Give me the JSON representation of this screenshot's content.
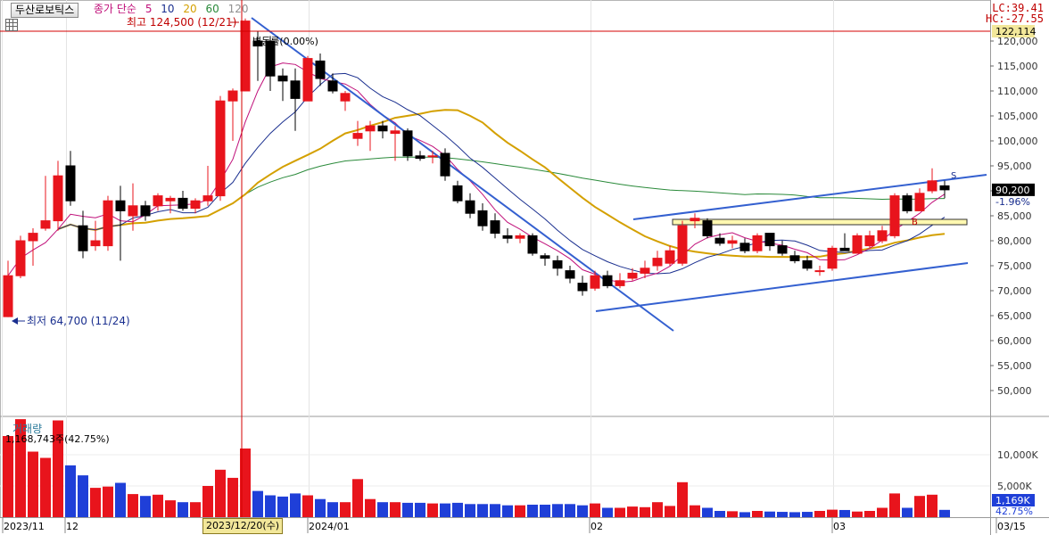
{
  "header": {
    "stock_name": "두산로보틱스",
    "ma_label": "종가 단순",
    "ma_periods": [
      {
        "label": "5",
        "color": "#c0107a"
      },
      {
        "label": "10",
        "color": "#1a2f8f"
      },
      {
        "label": "20",
        "color": "#d4a000"
      },
      {
        "label": "60",
        "color": "#2a8a3a"
      },
      {
        "label": "120",
        "color": "#909090"
      }
    ],
    "lc": "LC:39.41",
    "hc": "HC:-27.55"
  },
  "price_panel": {
    "high_annotation": "최고 124,500 (12/21)",
    "low_annotation": "최저 64,700 (11/24)",
    "change_annotation": "변동률(0.00%)",
    "current_price_tag": "90,200",
    "change_pct_tag": "-1.96%",
    "crosshair_tag": "122,114",
    "marker_s": "S",
    "marker_b": "B"
  },
  "volume_panel": {
    "title": "거래량",
    "info": "1,168,743주(42.75%)",
    "current_volume_tag": "1,169K",
    "current_pct_tag": "42.75%"
  },
  "x_axis": {
    "labels": [
      "2023/11",
      "12",
      "2024/01",
      "02",
      "03",
      "03/15"
    ],
    "crosshair_date": "2023/12/20(수)"
  },
  "colors": {
    "up": "#e8141c",
    "down": "#000000",
    "vol_up": "#e8141c",
    "vol_down": "#1f3fd8",
    "trendline": "#3460d0",
    "crosshair": "#d40000"
  },
  "chart_data": {
    "type": "candlestick",
    "price_ylim": [
      45000,
      125000
    ],
    "price_ticks": [
      50000,
      55000,
      60000,
      65000,
      70000,
      75000,
      80000,
      85000,
      90000,
      95000,
      100000,
      105000,
      110000,
      115000,
      120000
    ],
    "volume_ticks_labels": [
      "10,000K",
      "5,000K"
    ],
    "volume_ticks": [
      10000,
      5000
    ],
    "volume_ylim": [
      0,
      16000
    ],
    "candles": [
      {
        "o": 64800,
        "h": 76000,
        "l": 64700,
        "c": 73000,
        "v": 13000
      },
      {
        "o": 73000,
        "h": 81000,
        "l": 72500,
        "c": 80000,
        "v": 15700
      },
      {
        "o": 80000,
        "h": 82500,
        "l": 75000,
        "c": 81500,
        "v": 10500
      },
      {
        "o": 82500,
        "h": 93000,
        "l": 82000,
        "c": 84000,
        "v": 9500
      },
      {
        "o": 84000,
        "h": 96000,
        "l": 82000,
        "c": 93000,
        "v": 15500
      },
      {
        "o": 95000,
        "h": 98000,
        "l": 87000,
        "c": 88000,
        "v": 8300
      },
      {
        "o": 83000,
        "h": 86000,
        "l": 76500,
        "c": 78000,
        "v": 6700
      },
      {
        "o": 79000,
        "h": 84000,
        "l": 78000,
        "c": 80000,
        "v": 4700
      },
      {
        "o": 79000,
        "h": 89000,
        "l": 78000,
        "c": 88000,
        "v": 4900
      },
      {
        "o": 88000,
        "h": 91000,
        "l": 76000,
        "c": 86000,
        "v": 5500
      },
      {
        "o": 85000,
        "h": 91500,
        "l": 82000,
        "c": 87000,
        "v": 3700
      },
      {
        "o": 87000,
        "h": 88000,
        "l": 84000,
        "c": 85000,
        "v": 3400
      },
      {
        "o": 87000,
        "h": 89500,
        "l": 86000,
        "c": 89000,
        "v": 3600
      },
      {
        "o": 88000,
        "h": 89000,
        "l": 85500,
        "c": 88500,
        "v": 2700
      },
      {
        "o": 88500,
        "h": 90000,
        "l": 86000,
        "c": 86500,
        "v": 2400
      },
      {
        "o": 86500,
        "h": 88500,
        "l": 85500,
        "c": 88000,
        "v": 2400
      },
      {
        "o": 88000,
        "h": 95000,
        "l": 87000,
        "c": 89000,
        "v": 5000
      },
      {
        "o": 89000,
        "h": 109000,
        "l": 88000,
        "c": 108000,
        "v": 7600
      },
      {
        "o": 108000,
        "h": 110500,
        "l": 100000,
        "c": 110000,
        "v": 6300
      },
      {
        "o": 110000,
        "h": 124500,
        "l": 110000,
        "c": 124000,
        "v": 11000
      },
      {
        "o": 120000,
        "h": 122000,
        "l": 112000,
        "c": 119000,
        "v": 4200
      },
      {
        "o": 120000,
        "h": 121000,
        "l": 110000,
        "c": 113000,
        "v": 3500
      },
      {
        "o": 113000,
        "h": 114500,
        "l": 108000,
        "c": 112000,
        "v": 3300
      },
      {
        "o": 112000,
        "h": 114500,
        "l": 102000,
        "c": 108500,
        "v": 3800
      },
      {
        "o": 108000,
        "h": 117000,
        "l": 108000,
        "c": 116500,
        "v": 3500
      },
      {
        "o": 116000,
        "h": 117500,
        "l": 111000,
        "c": 112500,
        "v": 2900
      },
      {
        "o": 112000,
        "h": 113500,
        "l": 109500,
        "c": 110000,
        "v": 2400
      },
      {
        "o": 108000,
        "h": 110000,
        "l": 106000,
        "c": 109500,
        "v": 2400
      },
      {
        "o": 100500,
        "h": 104000,
        "l": 99000,
        "c": 101500,
        "v": 6100
      },
      {
        "o": 102000,
        "h": 104000,
        "l": 98000,
        "c": 103000,
        "v": 2900
      },
      {
        "o": 103000,
        "h": 104000,
        "l": 100500,
        "c": 102000,
        "v": 2400
      },
      {
        "o": 101500,
        "h": 103000,
        "l": 96000,
        "c": 102000,
        "v": 2400
      },
      {
        "o": 102000,
        "h": 102500,
        "l": 96000,
        "c": 97000,
        "v": 2300
      },
      {
        "o": 97000,
        "h": 98000,
        "l": 96000,
        "c": 96500,
        "v": 2300
      },
      {
        "o": 97000,
        "h": 98000,
        "l": 95500,
        "c": 97000,
        "v": 2200
      },
      {
        "o": 97500,
        "h": 98500,
        "l": 92000,
        "c": 93000,
        "v": 2200
      },
      {
        "o": 91000,
        "h": 92000,
        "l": 87500,
        "c": 88000,
        "v": 2300
      },
      {
        "o": 88000,
        "h": 89500,
        "l": 84500,
        "c": 85500,
        "v": 2100
      },
      {
        "o": 86000,
        "h": 87500,
        "l": 82000,
        "c": 83000,
        "v": 2100
      },
      {
        "o": 84000,
        "h": 85500,
        "l": 80500,
        "c": 81500,
        "v": 2100
      },
      {
        "o": 81000,
        "h": 82500,
        "l": 79500,
        "c": 80500,
        "v": 1900
      },
      {
        "o": 80500,
        "h": 81500,
        "l": 79500,
        "c": 81000,
        "v": 1900
      },
      {
        "o": 81000,
        "h": 81500,
        "l": 77000,
        "c": 77500,
        "v": 2000
      },
      {
        "o": 77000,
        "h": 77500,
        "l": 75000,
        "c": 76500,
        "v": 2000
      },
      {
        "o": 76000,
        "h": 77000,
        "l": 73000,
        "c": 74500,
        "v": 2100
      },
      {
        "o": 74000,
        "h": 75000,
        "l": 71500,
        "c": 72500,
        "v": 2100
      },
      {
        "o": 71500,
        "h": 73000,
        "l": 69000,
        "c": 70000,
        "v": 1900
      },
      {
        "o": 70500,
        "h": 74000,
        "l": 70000,
        "c": 73000,
        "v": 2200
      },
      {
        "o": 73000,
        "h": 74000,
        "l": 70500,
        "c": 71000,
        "v": 1500
      },
      {
        "o": 71000,
        "h": 73500,
        "l": 70500,
        "c": 72000,
        "v": 1500
      },
      {
        "o": 72500,
        "h": 74500,
        "l": 72000,
        "c": 73500,
        "v": 1700
      },
      {
        "o": 73500,
        "h": 76000,
        "l": 72500,
        "c": 74500,
        "v": 1600
      },
      {
        "o": 75000,
        "h": 78000,
        "l": 74000,
        "c": 76500,
        "v": 2400
      },
      {
        "o": 75500,
        "h": 79000,
        "l": 75000,
        "c": 78000,
        "v": 1800
      },
      {
        "o": 75500,
        "h": 84000,
        "l": 75000,
        "c": 83000,
        "v": 5600
      },
      {
        "o": 84000,
        "h": 85500,
        "l": 82500,
        "c": 84500,
        "v": 1900
      },
      {
        "o": 84000,
        "h": 84500,
        "l": 80500,
        "c": 81000,
        "v": 1500
      },
      {
        "o": 80500,
        "h": 81500,
        "l": 79000,
        "c": 79500,
        "v": 1000
      },
      {
        "o": 79500,
        "h": 81000,
        "l": 78500,
        "c": 80000,
        "v": 950
      },
      {
        "o": 79500,
        "h": 80500,
        "l": 77500,
        "c": 78000,
        "v": 800
      },
      {
        "o": 78000,
        "h": 81500,
        "l": 77500,
        "c": 81000,
        "v": 1000
      },
      {
        "o": 81500,
        "h": 81500,
        "l": 78000,
        "c": 79000,
        "v": 900
      },
      {
        "o": 79000,
        "h": 80000,
        "l": 77000,
        "c": 77500,
        "v": 850
      },
      {
        "o": 77000,
        "h": 78000,
        "l": 75500,
        "c": 76000,
        "v": 800
      },
      {
        "o": 76000,
        "h": 77000,
        "l": 74000,
        "c": 74500,
        "v": 850
      },
      {
        "o": 74000,
        "h": 75000,
        "l": 73000,
        "c": 74000,
        "v": 1000
      },
      {
        "o": 74500,
        "h": 79000,
        "l": 74000,
        "c": 78500,
        "v": 1200
      },
      {
        "o": 78500,
        "h": 81500,
        "l": 78000,
        "c": 78000,
        "v": 1150
      },
      {
        "o": 77500,
        "h": 81500,
        "l": 77500,
        "c": 81000,
        "v": 900
      },
      {
        "o": 79000,
        "h": 82000,
        "l": 78500,
        "c": 81000,
        "v": 1000
      },
      {
        "o": 80000,
        "h": 83000,
        "l": 79500,
        "c": 82000,
        "v": 1500
      },
      {
        "o": 81000,
        "h": 89500,
        "l": 80500,
        "c": 89000,
        "v": 3800
      },
      {
        "o": 89000,
        "h": 89500,
        "l": 85500,
        "c": 86000,
        "v": 1500
      },
      {
        "o": 86000,
        "h": 90500,
        "l": 86000,
        "c": 89500,
        "v": 3400
      },
      {
        "o": 90000,
        "h": 94500,
        "l": 89500,
        "c": 92000,
        "v": 3600
      },
      {
        "o": 91000,
        "h": 92000,
        "l": 88500,
        "c": 90200,
        "v": 1169
      }
    ]
  }
}
